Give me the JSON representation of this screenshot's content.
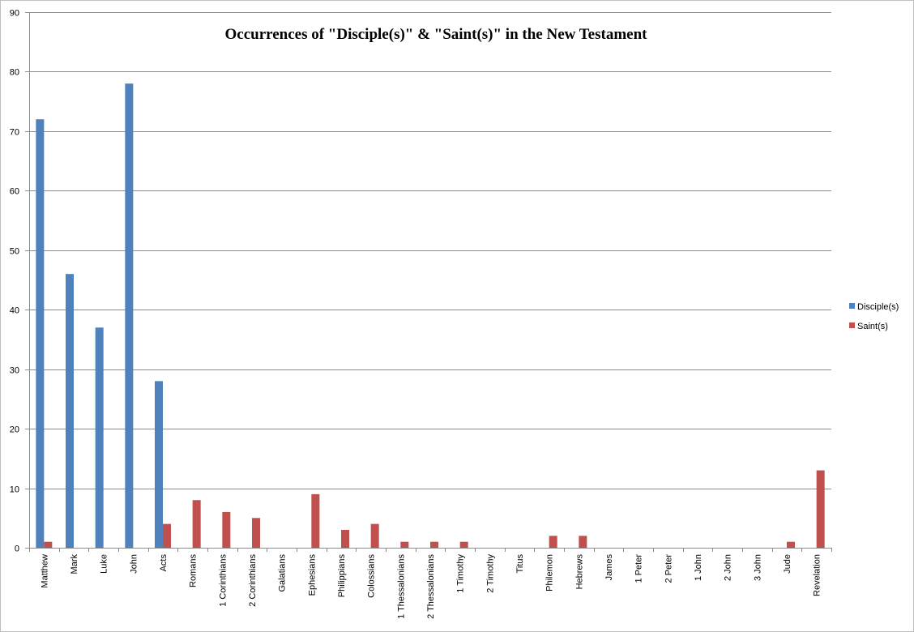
{
  "chart_data": {
    "type": "bar",
    "title": "Occurrences of \"Disciple(s)\" &  \"Saint(s)\" in the New Testament",
    "xlabel": "",
    "ylabel": "",
    "ylim": [
      0,
      90
    ],
    "yticks": [
      0,
      10,
      20,
      30,
      40,
      50,
      60,
      70,
      80,
      90
    ],
    "grid": true,
    "legend_position": "right",
    "categories": [
      "Matthew",
      "Mark",
      "Luke",
      "John",
      "Acts",
      "Romans",
      "1 Corinthians",
      "2 Corinthians",
      "Galatians",
      "Ephesians",
      "Philippians",
      "Colossians",
      "1 Thessalonians",
      "2 Thessalonians",
      "1 Timothy",
      "2 Timothy",
      "Titus",
      "Philemon",
      "Hebrews",
      "James",
      "1 Peter",
      "2 Peter",
      "1 John",
      "2 John",
      "3 John",
      "Jude",
      "Revelation"
    ],
    "series": [
      {
        "name": "Disciple(s)",
        "color": "#4f81bd",
        "values": [
          72,
          46,
          37,
          78,
          28,
          0,
          0,
          0,
          0,
          0,
          0,
          0,
          0,
          0,
          0,
          0,
          0,
          0,
          0,
          0,
          0,
          0,
          0,
          0,
          0,
          0,
          0
        ]
      },
      {
        "name": "Saint(s)",
        "color": "#c0504d",
        "values": [
          1,
          0,
          0,
          0,
          4,
          8,
          6,
          5,
          0,
          9,
          3,
          4,
          1,
          1,
          1,
          0,
          0,
          2,
          2,
          0,
          0,
          0,
          0,
          0,
          0,
          1,
          13
        ]
      }
    ]
  }
}
